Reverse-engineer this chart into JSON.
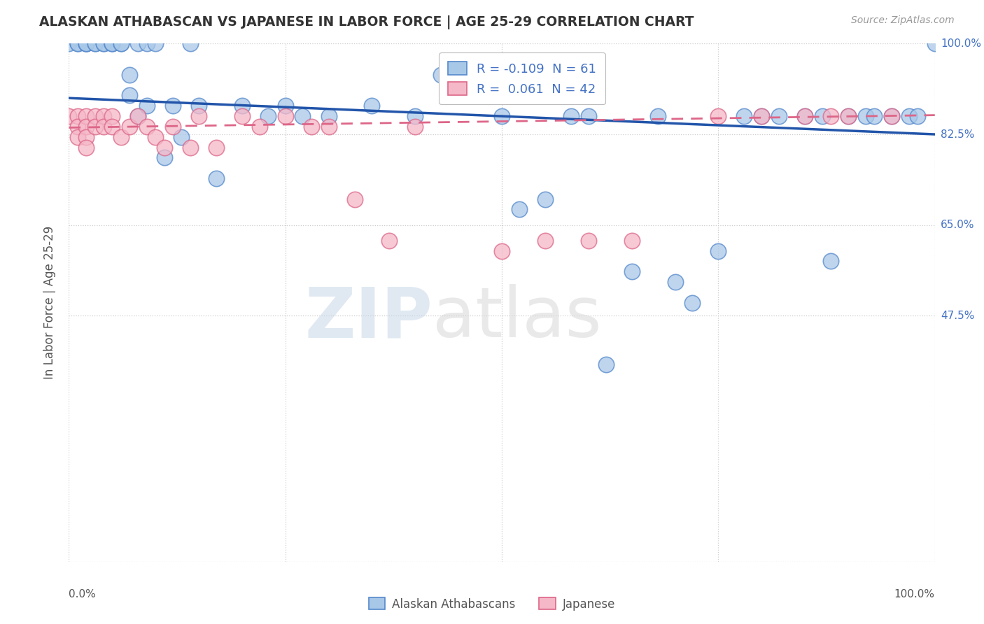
{
  "title": "ALASKAN ATHABASCAN VS JAPANESE IN LABOR FORCE | AGE 25-29 CORRELATION CHART",
  "source": "Source: ZipAtlas.com",
  "ylabel": "In Labor Force | Age 25-29",
  "legend_blue_r": "-0.109",
  "legend_blue_n": "61",
  "legend_pink_r": "0.061",
  "legend_pink_n": "42",
  "legend_label_blue": "Alaskan Athabascans",
  "legend_label_pink": "Japanese",
  "blue_color": "#a8c8e8",
  "pink_color": "#f5b8c8",
  "blue_edge_color": "#5588cc",
  "pink_edge_color": "#dd6688",
  "blue_line_color": "#2255aa",
  "pink_line_color": "#dd6688",
  "background_color": "#ffffff",
  "grid_color": "#cccccc",
  "title_color": "#333333",
  "watermark_zip": "ZIP",
  "watermark_atlas": "atlas",
  "blue_scatter_x": [
    0.0,
    0.01,
    0.01,
    0.02,
    0.02,
    0.02,
    0.02,
    0.03,
    0.03,
    0.04,
    0.04,
    0.05,
    0.05,
    0.05,
    0.06,
    0.06,
    0.07,
    0.07,
    0.08,
    0.08,
    0.09,
    0.09,
    0.1,
    0.11,
    0.12,
    0.13,
    0.14,
    0.15,
    0.17,
    0.2,
    0.23,
    0.25,
    0.27,
    0.3,
    0.35,
    0.4,
    0.43,
    0.5,
    0.52,
    0.55,
    0.58,
    0.6,
    0.62,
    0.65,
    0.68,
    0.7,
    0.72,
    0.75,
    0.78,
    0.8,
    0.82,
    0.85,
    0.87,
    0.88,
    0.9,
    0.92,
    0.93,
    0.95,
    0.97,
    0.98,
    1.0
  ],
  "blue_scatter_y": [
    1.0,
    1.0,
    1.0,
    1.0,
    1.0,
    1.0,
    1.0,
    1.0,
    1.0,
    1.0,
    1.0,
    1.0,
    1.0,
    1.0,
    1.0,
    1.0,
    0.94,
    0.9,
    1.0,
    0.86,
    1.0,
    0.88,
    1.0,
    0.78,
    0.88,
    0.82,
    1.0,
    0.88,
    0.74,
    0.88,
    0.86,
    0.88,
    0.86,
    0.86,
    0.88,
    0.86,
    0.94,
    0.86,
    0.68,
    0.7,
    0.86,
    0.86,
    0.38,
    0.56,
    0.86,
    0.54,
    0.5,
    0.6,
    0.86,
    0.86,
    0.86,
    0.86,
    0.86,
    0.58,
    0.86,
    0.86,
    0.86,
    0.86,
    0.86,
    0.86,
    1.0
  ],
  "pink_scatter_x": [
    0.0,
    0.01,
    0.01,
    0.01,
    0.02,
    0.02,
    0.02,
    0.02,
    0.03,
    0.03,
    0.04,
    0.04,
    0.05,
    0.05,
    0.06,
    0.07,
    0.08,
    0.09,
    0.1,
    0.11,
    0.12,
    0.14,
    0.15,
    0.17,
    0.2,
    0.22,
    0.25,
    0.28,
    0.3,
    0.33,
    0.37,
    0.4,
    0.5,
    0.55,
    0.6,
    0.65,
    0.75,
    0.8,
    0.85,
    0.88,
    0.9,
    0.95
  ],
  "pink_scatter_y": [
    0.86,
    0.86,
    0.84,
    0.82,
    0.86,
    0.84,
    0.82,
    0.8,
    0.86,
    0.84,
    0.86,
    0.84,
    0.86,
    0.84,
    0.82,
    0.84,
    0.86,
    0.84,
    0.82,
    0.8,
    0.84,
    0.8,
    0.86,
    0.8,
    0.86,
    0.84,
    0.86,
    0.84,
    0.84,
    0.7,
    0.62,
    0.84,
    0.6,
    0.62,
    0.62,
    0.62,
    0.86,
    0.86,
    0.86,
    0.86,
    0.86,
    0.86
  ],
  "xlim": [
    0.0,
    1.0
  ],
  "ylim": [
    0.0,
    1.0
  ],
  "yticks": [
    0.0,
    0.475,
    0.65,
    0.825,
    1.0
  ],
  "ytick_labels": [
    "",
    "47.5%",
    "65.0%",
    "82.5%",
    "100.0%"
  ],
  "xticks": [
    0.0,
    0.25,
    0.5,
    0.75,
    1.0
  ],
  "blue_line_x0": 0.0,
  "blue_line_y0": 0.895,
  "blue_line_x1": 1.0,
  "blue_line_y1": 0.825,
  "pink_line_x0": 0.0,
  "pink_line_y0": 0.838,
  "pink_line_x1": 1.0,
  "pink_line_y1": 0.862
}
